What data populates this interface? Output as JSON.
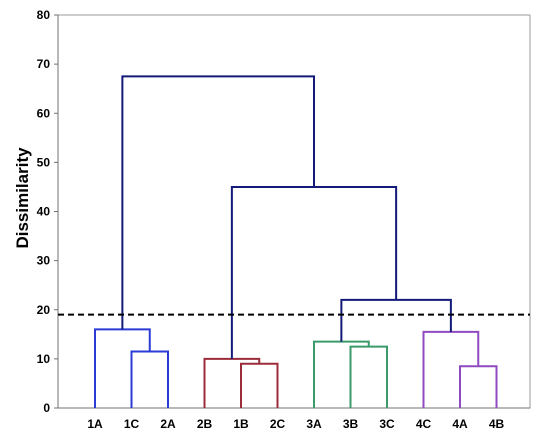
{
  "chart_data": {
    "type": "dendrogram",
    "ylabel": "Dissimilarity",
    "ylim": [
      0,
      80
    ],
    "yticks": [
      0,
      10,
      20,
      30,
      40,
      50,
      60,
      70,
      80
    ],
    "truncation_line": 19,
    "leaves": [
      "1A",
      "1C",
      "2A",
      "2B",
      "1B",
      "2C",
      "3A",
      "3B",
      "3C",
      "4C",
      "4A",
      "4B"
    ],
    "colors": {
      "cluster1": "#2b3bd6",
      "cluster2": "#9b2d3a",
      "cluster3": "#3a9a6a",
      "cluster4": "#8f4ac0",
      "upper": "#141a7a",
      "cutoff": "#000000"
    },
    "merges": [
      {
        "left": "1C",
        "right": "2A",
        "height": 11.5,
        "color": "cluster1"
      },
      {
        "left": "1A",
        "right": "m0",
        "height": 16.0,
        "color": "cluster1"
      },
      {
        "left": "1B",
        "right": "2C",
        "height": 9.0,
        "color": "cluster2"
      },
      {
        "left": "2B",
        "right": "m2",
        "height": 10.0,
        "color": "cluster2"
      },
      {
        "left": "3B",
        "right": "3C",
        "height": 12.5,
        "color": "cluster3"
      },
      {
        "left": "3A",
        "right": "m4",
        "height": 13.5,
        "color": "cluster3"
      },
      {
        "left": "4A",
        "right": "4B",
        "height": 8.5,
        "color": "cluster4"
      },
      {
        "left": "4C",
        "right": "m6",
        "height": 15.5,
        "color": "cluster4"
      },
      {
        "left": "m5",
        "right": "m7",
        "height": 22.0,
        "color": "upper"
      },
      {
        "left": "m3",
        "right": "m8",
        "height": 45.0,
        "color": "upper"
      },
      {
        "left": "m1",
        "right": "m9",
        "height": 67.5,
        "color": "upper"
      }
    ]
  }
}
